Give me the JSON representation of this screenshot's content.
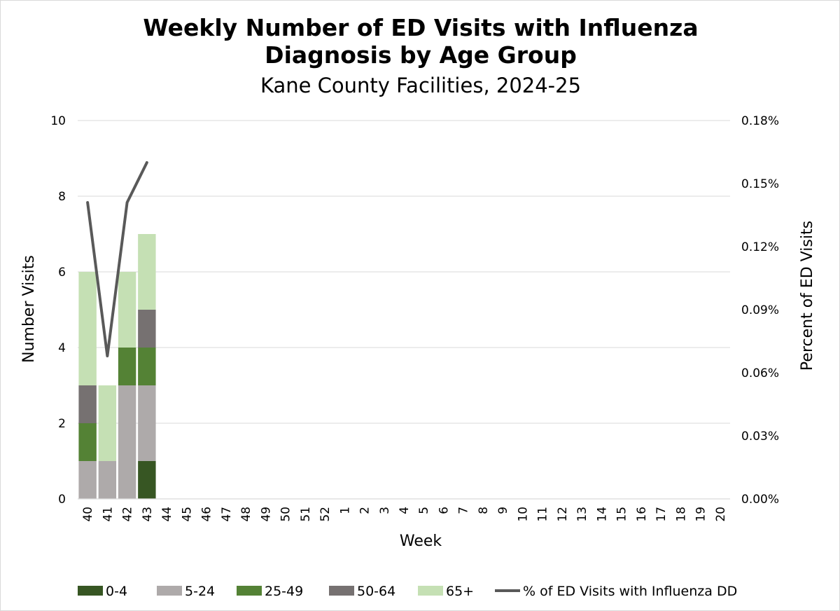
{
  "chart_data": {
    "type": "bar",
    "stacked": true,
    "title": "Weekly Number of ED Visits with Influenza Diagnosis by Age Group",
    "title_lines": [
      "Weekly Number of ED Visits with Influenza",
      "Diagnosis by Age Group"
    ],
    "subtitle": "Kane County Facilities, 2024-25",
    "xlabel": "Week",
    "ylabel": "Number Visits",
    "y2label": "Percent of ED Visits",
    "ylim": [
      0,
      10
    ],
    "yticks": [
      0,
      2,
      4,
      6,
      8,
      10
    ],
    "y2lim": [
      0,
      0.18
    ],
    "y2ticks": [
      "0.00%",
      "0.03%",
      "0.06%",
      "0.09%",
      "0.12%",
      "0.15%",
      "0.18%"
    ],
    "grid": true,
    "legend_position": "bottom",
    "categories": [
      "40",
      "41",
      "42",
      "43",
      "44",
      "45",
      "46",
      "47",
      "48",
      "49",
      "50",
      "51",
      "52",
      "1",
      "2",
      "3",
      "4",
      "5",
      "6",
      "7",
      "8",
      "9",
      "10",
      "11",
      "12",
      "13",
      "14",
      "15",
      "16",
      "17",
      "18",
      "19",
      "20"
    ],
    "series": [
      {
        "name": "0-4",
        "color": "#375623",
        "values": [
          0,
          0,
          0,
          1,
          null,
          null,
          null,
          null,
          null,
          null,
          null,
          null,
          null,
          null,
          null,
          null,
          null,
          null,
          null,
          null,
          null,
          null,
          null,
          null,
          null,
          null,
          null,
          null,
          null,
          null,
          null,
          null,
          null
        ]
      },
      {
        "name": "5-24",
        "color": "#aeaaaa",
        "values": [
          1,
          1,
          3,
          2,
          null,
          null,
          null,
          null,
          null,
          null,
          null,
          null,
          null,
          null,
          null,
          null,
          null,
          null,
          null,
          null,
          null,
          null,
          null,
          null,
          null,
          null,
          null,
          null,
          null,
          null,
          null,
          null,
          null
        ]
      },
      {
        "name": "25-49",
        "color": "#548235",
        "values": [
          1,
          0,
          1,
          1,
          null,
          null,
          null,
          null,
          null,
          null,
          null,
          null,
          null,
          null,
          null,
          null,
          null,
          null,
          null,
          null,
          null,
          null,
          null,
          null,
          null,
          null,
          null,
          null,
          null,
          null,
          null,
          null,
          null
        ]
      },
      {
        "name": "50-64",
        "color": "#767171",
        "values": [
          1,
          0,
          0,
          1,
          null,
          null,
          null,
          null,
          null,
          null,
          null,
          null,
          null,
          null,
          null,
          null,
          null,
          null,
          null,
          null,
          null,
          null,
          null,
          null,
          null,
          null,
          null,
          null,
          null,
          null,
          null,
          null,
          null
        ]
      },
      {
        "name": "65+",
        "color": "#c5e0b4",
        "values": [
          3,
          2,
          2,
          2,
          null,
          null,
          null,
          null,
          null,
          null,
          null,
          null,
          null,
          null,
          null,
          null,
          null,
          null,
          null,
          null,
          null,
          null,
          null,
          null,
          null,
          null,
          null,
          null,
          null,
          null,
          null,
          null,
          null
        ]
      }
    ],
    "line_series": {
      "name": "% of ED Visits with Influenza DD",
      "color": "#595959",
      "axis": "secondary",
      "values": [
        0.141,
        0.068,
        0.141,
        0.16,
        null,
        null,
        null,
        null,
        null,
        null,
        null,
        null,
        null,
        null,
        null,
        null,
        null,
        null,
        null,
        null,
        null,
        null,
        null,
        null,
        null,
        null,
        null,
        null,
        null,
        null,
        null,
        null,
        null
      ]
    }
  }
}
